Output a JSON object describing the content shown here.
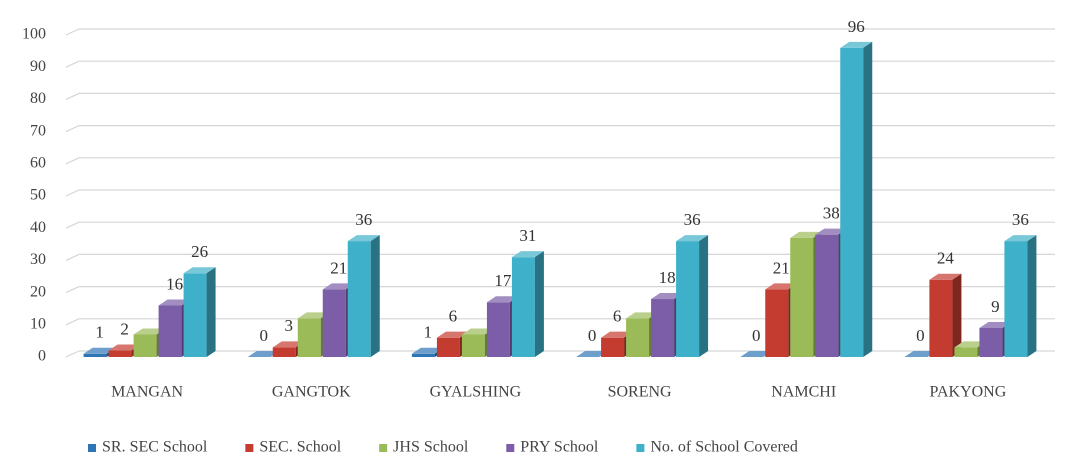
{
  "chart_data": {
    "type": "bar3d",
    "categories": [
      "MANGAN",
      "GANGTOK",
      "GYALSHING",
      "SORENG",
      "NAMCHI",
      "PAKYONG"
    ],
    "series": [
      {
        "name": "SR. SEC School",
        "color": "#2e75b6",
        "show_labels": true,
        "values": [
          1,
          0,
          1,
          0,
          0,
          0
        ]
      },
      {
        "name": "SEC. School",
        "color": "#c43b30",
        "show_labels": true,
        "values": [
          2,
          3,
          6,
          6,
          21,
          24
        ]
      },
      {
        "name": "JHS School",
        "color": "#9bbb59",
        "show_labels": false,
        "values": [
          7,
          12,
          7,
          12,
          37,
          3
        ]
      },
      {
        "name": "PRY School",
        "color": "#7b5ea7",
        "show_labels": true,
        "values": [
          16,
          21,
          17,
          18,
          38,
          9
        ]
      },
      {
        "name": "No. of School Covered",
        "color": "#3fb0c9",
        "show_labels": true,
        "values": [
          26,
          36,
          31,
          36,
          96,
          36
        ]
      }
    ],
    "ylim": [
      0,
      100
    ],
    "yticks": [
      0,
      10,
      20,
      30,
      40,
      50,
      60,
      70,
      80,
      90,
      100
    ],
    "grid": true,
    "legend": "bottom"
  }
}
